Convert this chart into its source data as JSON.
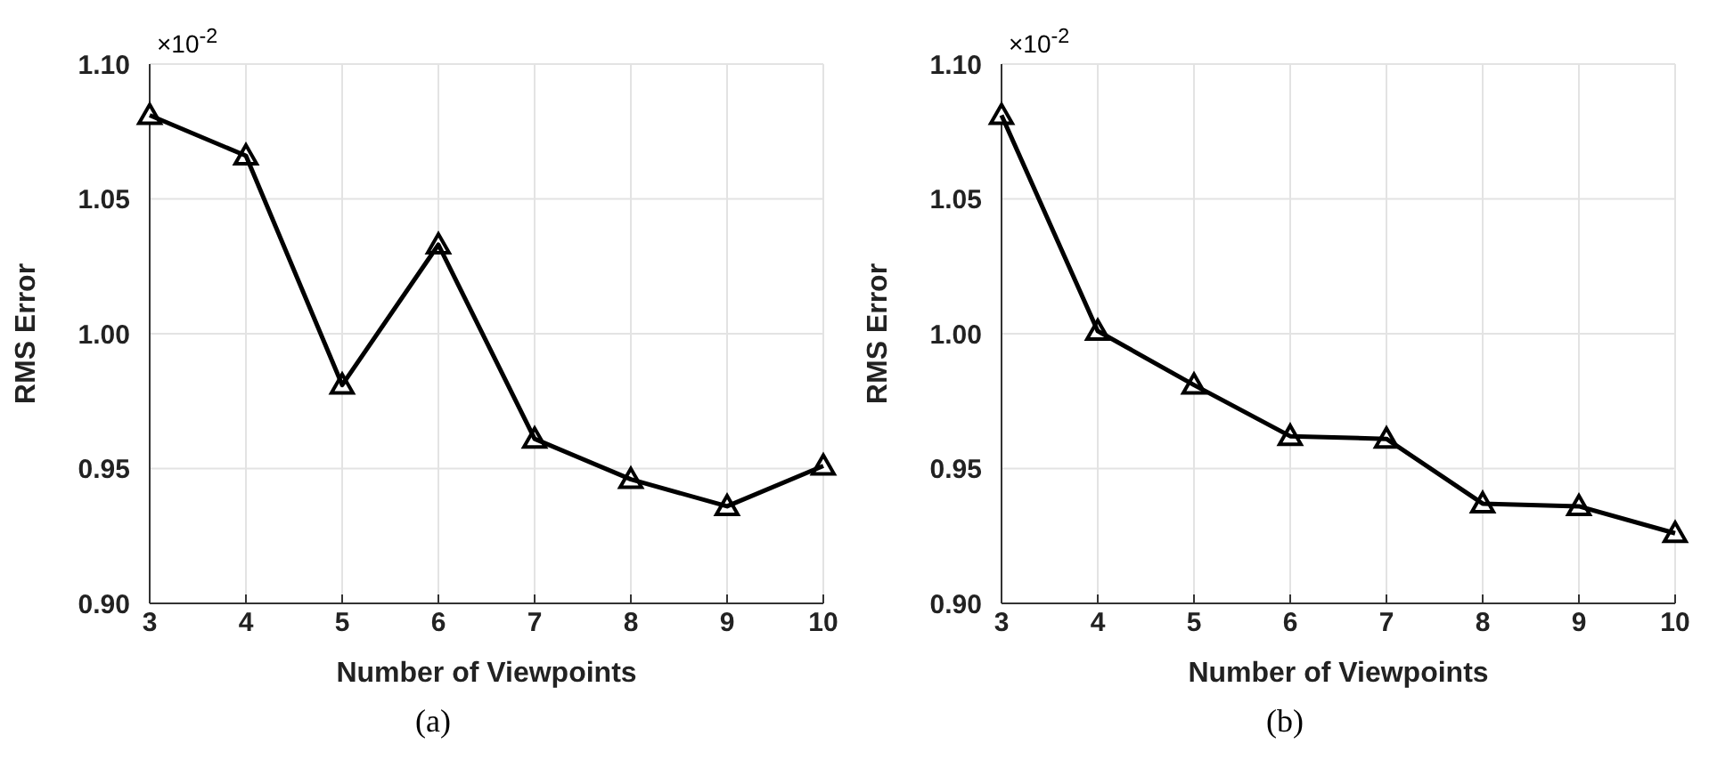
{
  "chart_data": [
    {
      "type": "line",
      "xlabel": "Number of Viewpoints",
      "ylabel": "RMS Error",
      "annotations": [
        "×10$^{-2}$",
        "(a)"
      ],
      "x": [
        3,
        4,
        5,
        6,
        7,
        8,
        9,
        10
      ],
      "xlim": [
        3,
        10
      ],
      "xticks": [
        3,
        4,
        5,
        6,
        7,
        8,
        9,
        10
      ],
      "ylim": [
        0.9,
        1.1
      ],
      "yticks": [
        {
          "value": 0.9,
          "label": "0.90"
        },
        {
          "value": 0.95,
          "label": "0.95"
        },
        {
          "value": 1.0,
          "label": "1.00"
        },
        {
          "value": 1.05,
          "label": "1.05"
        },
        {
          "value": 1.1,
          "label": "1.10"
        }
      ],
      "grid": true,
      "marker": "triangle",
      "line_style": "solid",
      "legend": false,
      "series": [
        {
          "color": "#000000",
          "values": [
            1.081,
            1.066,
            0.981,
            1.033,
            0.961,
            0.946,
            0.936,
            0.951
          ]
        }
      ]
    },
    {
      "type": "line",
      "xlabel": "Number of Viewpoints",
      "ylabel": "RMS Error",
      "annotations": [
        "×10$^{-2}$",
        "(b)"
      ],
      "x": [
        3,
        4,
        5,
        6,
        7,
        8,
        9,
        10
      ],
      "xlim": [
        3,
        10
      ],
      "xticks": [
        3,
        4,
        5,
        6,
        7,
        8,
        9,
        10
      ],
      "ylim": [
        0.9,
        1.1
      ],
      "yticks": [
        {
          "value": 0.9,
          "label": "0.90"
        },
        {
          "value": 0.95,
          "label": "0.95"
        },
        {
          "value": 1.0,
          "label": "1.00"
        },
        {
          "value": 1.05,
          "label": "1.05"
        },
        {
          "value": 1.1,
          "label": "1.10"
        }
      ],
      "grid": true,
      "marker": "triangle",
      "line_style": "solid",
      "legend": false,
      "series": [
        {
          "color": "#000000",
          "values": [
            1.081,
            1.001,
            0.981,
            0.962,
            0.961,
            0.937,
            0.936,
            0.926
          ]
        }
      ]
    }
  ]
}
